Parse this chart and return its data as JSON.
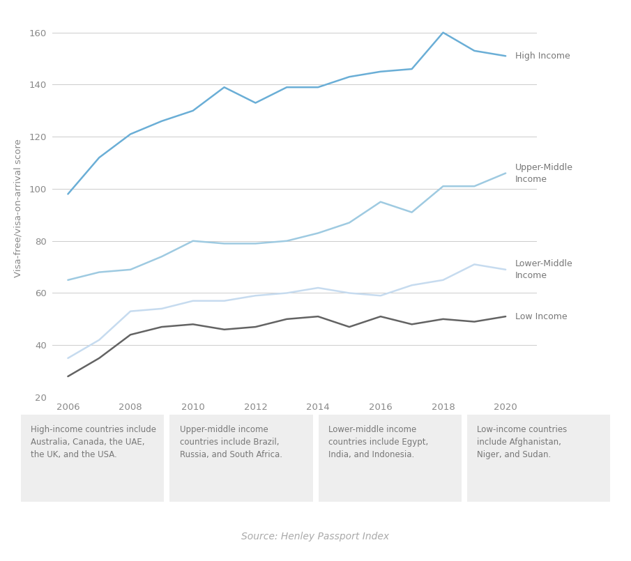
{
  "years": [
    2006,
    2007,
    2008,
    2009,
    2010,
    2011,
    2012,
    2013,
    2014,
    2015,
    2016,
    2017,
    2018,
    2019,
    2020
  ],
  "high_income": [
    98,
    112,
    121,
    126,
    130,
    139,
    133,
    139,
    139,
    143,
    145,
    146,
    160,
    153,
    151
  ],
  "upper_middle_income": [
    65,
    68,
    69,
    74,
    80,
    79,
    79,
    80,
    83,
    87,
    95,
    91,
    101,
    101,
    106
  ],
  "lower_middle_income": [
    35,
    42,
    53,
    54,
    57,
    57,
    59,
    60,
    62,
    60,
    59,
    63,
    65,
    71,
    69
  ],
  "low_income": [
    28,
    35,
    44,
    47,
    48,
    46,
    47,
    50,
    51,
    47,
    51,
    48,
    50,
    49,
    51
  ],
  "colors": {
    "high_income": "#6aaed6",
    "upper_middle_income": "#9ecae1",
    "lower_middle_income": "#c6dbef",
    "low_income": "#636363"
  },
  "label_color": "#777777",
  "labels": {
    "high_income": "High Income",
    "upper_middle_income": "Upper-Middle\nIncome",
    "lower_middle_income": "Lower-Middle\nIncome",
    "low_income": "Low Income"
  },
  "ylabel": "Visa-free/visa-on-arrival score",
  "ylim": [
    20,
    165
  ],
  "yticks": [
    20,
    40,
    60,
    80,
    100,
    120,
    140,
    160
  ],
  "xticks": [
    2006,
    2008,
    2010,
    2012,
    2014,
    2016,
    2018,
    2020
  ],
  "bg_color": "#ffffff",
  "grid_color": "#cccccc",
  "box_color": "#eeeeee",
  "source_text": "Source: Henley Passport Index",
  "footnotes": [
    "High-income countries include\nAustralia, Canada, the UAE,\nthe UK, and the USA.",
    "Upper-middle income\ncountries include Brazil,\nRussia, and South Africa.",
    "Lower-middle income\ncountries include Egypt,\nIndia, and Indonesia.",
    "Low-income countries\ninclude Afghanistan,\nNiger, and Sudan."
  ]
}
